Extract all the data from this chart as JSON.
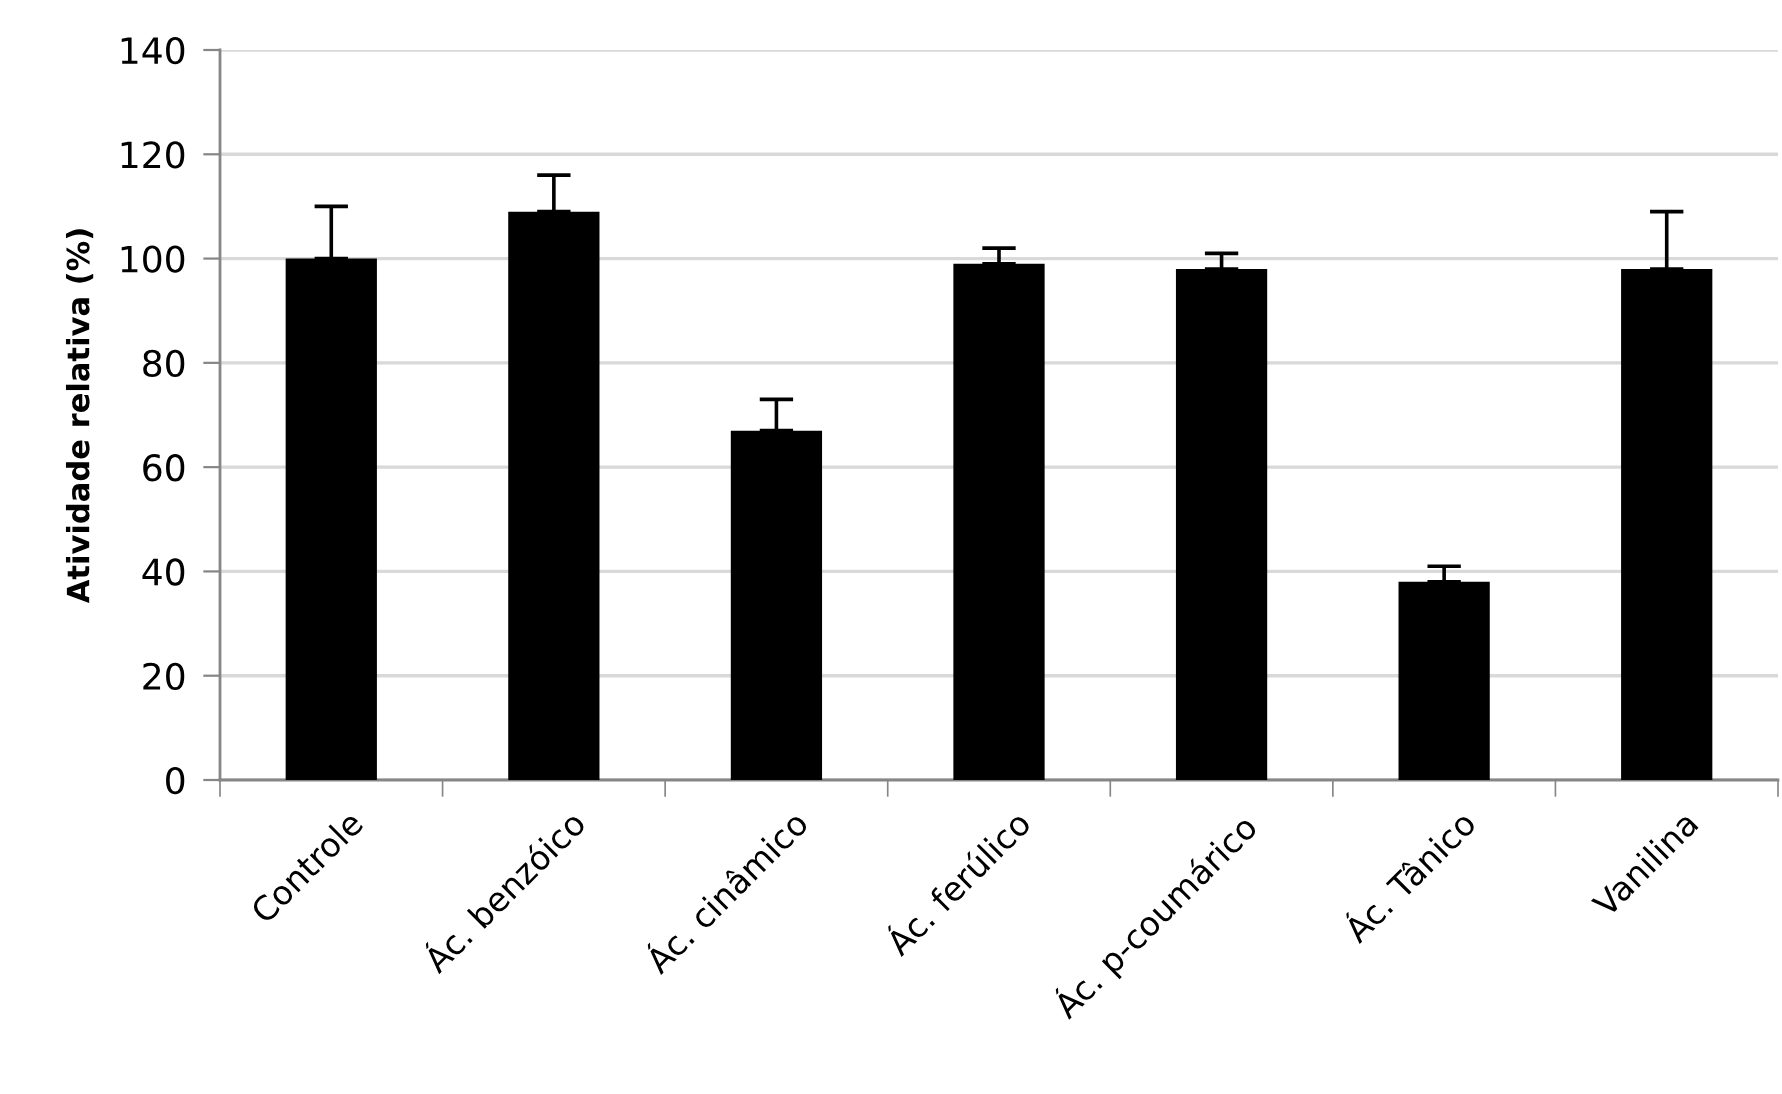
{
  "chart_data": {
    "type": "bar",
    "ylabel": "Atividade relativa (%)",
    "categories": [
      "Controle",
      "Ác. benzóico",
      "Ác. cinâmico",
      "Ác. ferúlico",
      "Ác. p-coumárico",
      "Ác. Tânico",
      "Vanilina"
    ],
    "values": [
      100,
      109,
      67,
      99,
      98,
      38,
      98
    ],
    "errors": [
      [
        100,
        110
      ],
      [
        109,
        116
      ],
      [
        67,
        73
      ],
      [
        99,
        102
      ],
      [
        98,
        101
      ],
      [
        38,
        41
      ],
      [
        98,
        109
      ]
    ],
    "color": "#000000",
    "ylim": [
      0,
      140
    ],
    "yticks": [
      0,
      20,
      40,
      60,
      80,
      100,
      120,
      140
    ],
    "grid": "y"
  }
}
